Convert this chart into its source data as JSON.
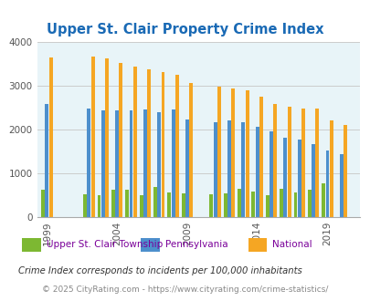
{
  "title": "Upper St. Clair Property Crime Index",
  "title_color": "#1a6ab5",
  "background_color": "#e8f4f8",
  "fig_background": "#ffffff",
  "years": [
    1999,
    2000,
    2001,
    2002,
    2003,
    2004,
    2005,
    2006,
    2007,
    2008,
    2009,
    2010,
    2011,
    2012,
    2013,
    2014,
    2015,
    2016,
    2017,
    2018,
    2019,
    2020
  ],
  "township": [
    620,
    null,
    null,
    510,
    490,
    620,
    610,
    490,
    680,
    560,
    530,
    null,
    510,
    540,
    640,
    570,
    490,
    640,
    550,
    620,
    760,
    null
  ],
  "pennsylvania": [
    2580,
    null,
    null,
    2470,
    2430,
    2430,
    2430,
    2460,
    2390,
    2450,
    2220,
    null,
    2160,
    2200,
    2170,
    2060,
    1950,
    1820,
    1760,
    1660,
    1510,
    1430
  ],
  "national": [
    3640,
    null,
    null,
    3660,
    3620,
    3530,
    3440,
    3380,
    3310,
    3250,
    3070,
    null,
    2970,
    2940,
    2900,
    2760,
    2590,
    2510,
    2480,
    2470,
    2200,
    2100
  ],
  "bar_colors": {
    "township": "#7db832",
    "pennsylvania": "#4d8fcc",
    "national": "#f5a623"
  },
  "ylim": [
    0,
    4000
  ],
  "yticks": [
    0,
    1000,
    2000,
    3000,
    4000
  ],
  "xlabel_ticks": [
    1999,
    2004,
    2009,
    2014,
    2019
  ],
  "grid_color": "#cccccc",
  "legend_labels": [
    "Upper St. Clair Township",
    "Pennsylvania",
    "National"
  ],
  "footnote1": "Crime Index corresponds to incidents per 100,000 inhabitants",
  "footnote2": "© 2025 CityRating.com - https://www.cityrating.com/crime-statistics/",
  "footnote1_color": "#333333",
  "footnote2_color": "#888888",
  "legend_text_color": "#7a0099"
}
